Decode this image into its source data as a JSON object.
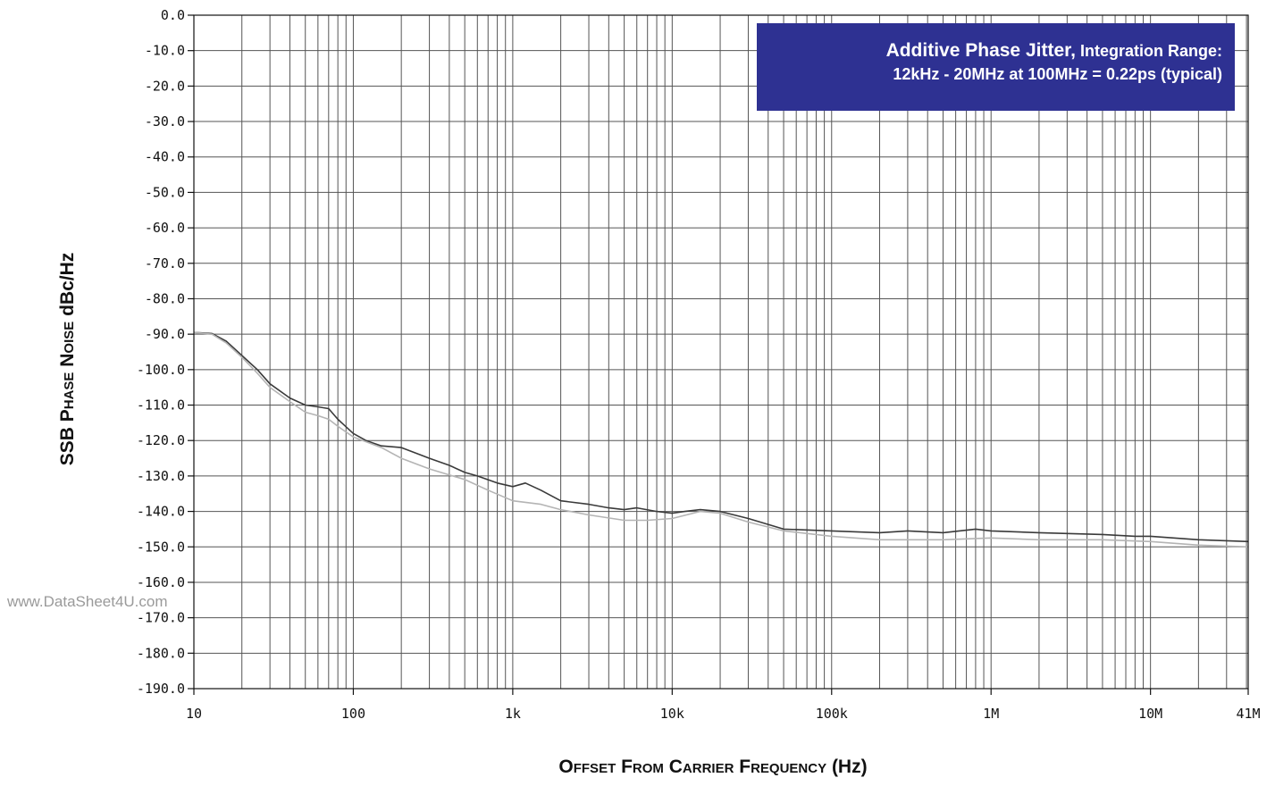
{
  "chart_data": {
    "type": "line",
    "title": "",
    "xlabel": "Offset From Carrier Frequency (Hz)",
    "ylabel": "SSB Phase Noise dBc/Hz",
    "xscale": "log",
    "xlim": [
      10,
      41000000
    ],
    "ylim": [
      -190,
      0
    ],
    "grid": true,
    "y_ticks": [
      "0.0",
      "-10.0",
      "-20.0",
      "-30.0",
      "-40.0",
      "-50.0",
      "-60.0",
      "-70.0",
      "-80.0",
      "-90.0",
      "-100.0",
      "-110.0",
      "-120.0",
      "-130.0",
      "-140.0",
      "-150.0",
      "-160.0",
      "-170.0",
      "-180.0",
      "-190.0"
    ],
    "x_ticks": [
      {
        "value": 10,
        "label": "10"
      },
      {
        "value": 100,
        "label": "100"
      },
      {
        "value": 1000,
        "label": "1k"
      },
      {
        "value": 10000,
        "label": "10k"
      },
      {
        "value": 100000,
        "label": "100k"
      },
      {
        "value": 1000000,
        "label": "1M"
      },
      {
        "value": 10000000,
        "label": "10M"
      },
      {
        "value": 41000000,
        "label": "41M"
      }
    ],
    "annotation": {
      "line1_main": "Additive Phase Jitter,",
      "line1_small": " Integration Range:",
      "line2": "12kHz - 20MHz at 100MHz = 0.22ps (typical)"
    },
    "series": [
      {
        "color": "#3a3a3a",
        "points": [
          [
            10,
            -89.5
          ],
          [
            13,
            -89.8
          ],
          [
            16,
            -92
          ],
          [
            20,
            -96
          ],
          [
            25,
            -100
          ],
          [
            30,
            -104
          ],
          [
            40,
            -108
          ],
          [
            50,
            -110
          ],
          [
            60,
            -110.5
          ],
          [
            70,
            -111
          ],
          [
            80,
            -114
          ],
          [
            100,
            -118
          ],
          [
            120,
            -120
          ],
          [
            150,
            -121.5
          ],
          [
            200,
            -122
          ],
          [
            300,
            -125
          ],
          [
            400,
            -127
          ],
          [
            500,
            -129
          ],
          [
            600,
            -130
          ],
          [
            800,
            -132
          ],
          [
            1000,
            -133
          ],
          [
            1200,
            -132
          ],
          [
            1500,
            -134
          ],
          [
            2000,
            -137
          ],
          [
            3000,
            -138
          ],
          [
            4000,
            -139
          ],
          [
            5000,
            -139.5
          ],
          [
            6000,
            -139
          ],
          [
            8000,
            -140
          ],
          [
            10000,
            -140.5
          ],
          [
            12000,
            -140
          ],
          [
            15000,
            -139.5
          ],
          [
            20000,
            -140
          ],
          [
            30000,
            -142
          ],
          [
            50000,
            -145
          ],
          [
            100000,
            -145.5
          ],
          [
            200000,
            -146
          ],
          [
            300000,
            -145.5
          ],
          [
            500000,
            -146
          ],
          [
            800000,
            -145
          ],
          [
            1000000,
            -145.5
          ],
          [
            2000000,
            -146
          ],
          [
            5000000,
            -146.5
          ],
          [
            8000000,
            -147
          ],
          [
            10000000,
            -147
          ],
          [
            20000000,
            -148
          ],
          [
            41000000,
            -148.5
          ]
        ]
      },
      {
        "color": "#b4b4b4",
        "points": [
          [
            10,
            -89.5
          ],
          [
            13,
            -90
          ],
          [
            16,
            -92.5
          ],
          [
            20,
            -96.5
          ],
          [
            25,
            -101
          ],
          [
            30,
            -105
          ],
          [
            40,
            -109
          ],
          [
            50,
            -112
          ],
          [
            60,
            -113
          ],
          [
            70,
            -114
          ],
          [
            80,
            -116
          ],
          [
            100,
            -119
          ],
          [
            150,
            -122
          ],
          [
            200,
            -125
          ],
          [
            300,
            -128
          ],
          [
            500,
            -131
          ],
          [
            700,
            -134
          ],
          [
            1000,
            -137
          ],
          [
            1500,
            -138
          ],
          [
            2000,
            -139.5
          ],
          [
            3000,
            -141
          ],
          [
            5000,
            -142.5
          ],
          [
            7000,
            -142.5
          ],
          [
            10000,
            -142
          ],
          [
            15000,
            -140
          ],
          [
            20000,
            -140.5
          ],
          [
            30000,
            -143
          ],
          [
            50000,
            -145.5
          ],
          [
            100000,
            -147
          ],
          [
            200000,
            -148
          ],
          [
            500000,
            -148
          ],
          [
            1000000,
            -147.5
          ],
          [
            2000000,
            -148
          ],
          [
            5000000,
            -148
          ],
          [
            10000000,
            -148.5
          ],
          [
            20000000,
            -149.5
          ],
          [
            41000000,
            -150
          ]
        ]
      }
    ]
  },
  "watermark": "www.DataSheet4U.com"
}
